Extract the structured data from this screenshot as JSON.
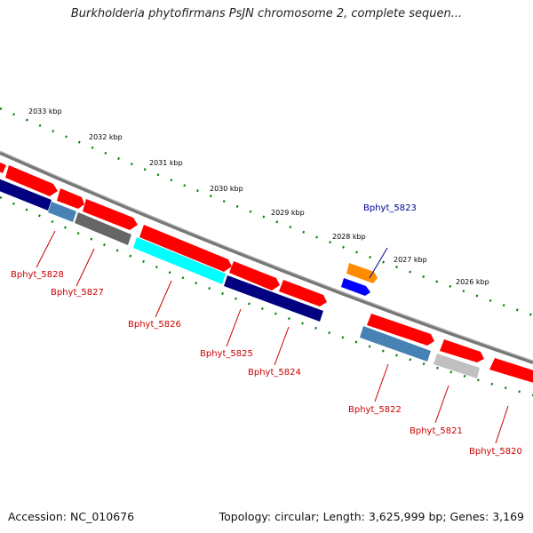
{
  "title": "Burkholderia phytofirmans PsJN chromosome 2, complete sequen...",
  "footer": {
    "accession": "Accession: NC_010676",
    "topology": "Topology: circular; Length: 3,625,999 bp; Genes: 3,169"
  },
  "kbp_labels": [
    "2033 kbp",
    "2032 kbp",
    "2031 kbp",
    "2030 kbp",
    "2029 kbp",
    "2028 kbp",
    "2027 kbp",
    "2026 kbp"
  ],
  "colors": {
    "red_gene": "#ff0000",
    "navy_gene": "#000080",
    "steel_gene": "#4682b4",
    "gray_gene": "#666666",
    "cyan_gene": "#00ffff",
    "lightgray_gene": "#c0c0c0",
    "orange_gene": "#ff8c00",
    "blue_gene": "#0000ff",
    "tick_green": "#008000",
    "label_red": "#cc0000",
    "label_blue": "#000099"
  },
  "genes": [
    {
      "id": "Bphyt_5828"
    },
    {
      "id": "Bphyt_5827"
    },
    {
      "id": "Bphyt_5826"
    },
    {
      "id": "Bphyt_5825"
    },
    {
      "id": "Bphyt_5824"
    },
    {
      "id": "Bphyt_5823"
    },
    {
      "id": "Bphyt_5822"
    },
    {
      "id": "Bphyt_5821"
    },
    {
      "id": "Bphyt_5820"
    }
  ]
}
